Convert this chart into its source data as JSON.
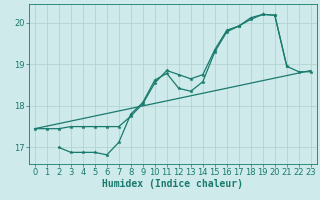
{
  "xlabel": "Humidex (Indice chaleur)",
  "bg_color": "#ceeaea",
  "grid_color": "#aed0d0",
  "line_color": "#1a7a6e",
  "xlim": [
    -0.5,
    23.5
  ],
  "ylim": [
    16.6,
    20.45
  ],
  "yticks": [
    17,
    18,
    19,
    20
  ],
  "xticks": [
    0,
    1,
    2,
    3,
    4,
    5,
    6,
    7,
    8,
    9,
    10,
    11,
    12,
    13,
    14,
    15,
    16,
    17,
    18,
    19,
    20,
    21,
    22,
    23
  ],
  "series1_x": [
    0,
    1,
    2,
    3,
    4,
    5,
    6,
    7,
    8,
    9,
    10,
    11,
    12,
    13,
    14,
    15,
    16,
    17,
    18,
    19,
    20,
    21
  ],
  "series1_y": [
    17.45,
    17.45,
    17.45,
    17.5,
    17.5,
    17.5,
    17.5,
    17.5,
    17.75,
    18.05,
    18.55,
    18.85,
    18.75,
    18.65,
    18.75,
    19.35,
    19.82,
    19.92,
    20.08,
    20.2,
    20.18,
    18.95
  ],
  "series2_x": [
    2,
    3,
    4,
    5,
    6,
    7,
    8,
    9,
    10,
    11,
    12,
    13,
    14,
    15,
    16,
    17,
    18,
    19,
    20,
    21,
    22,
    23
  ],
  "series2_y": [
    17.0,
    16.88,
    16.88,
    16.88,
    16.82,
    17.12,
    17.8,
    18.08,
    18.62,
    18.78,
    18.42,
    18.35,
    18.58,
    19.3,
    19.78,
    19.92,
    20.12,
    20.2,
    20.18,
    18.95,
    18.82,
    18.82
  ],
  "series3_x": [
    0,
    23
  ],
  "series3_y": [
    17.45,
    18.85
  ],
  "marker_size": 2.5,
  "line_width": 0.9,
  "font_size_label": 7,
  "font_size_tick": 6
}
